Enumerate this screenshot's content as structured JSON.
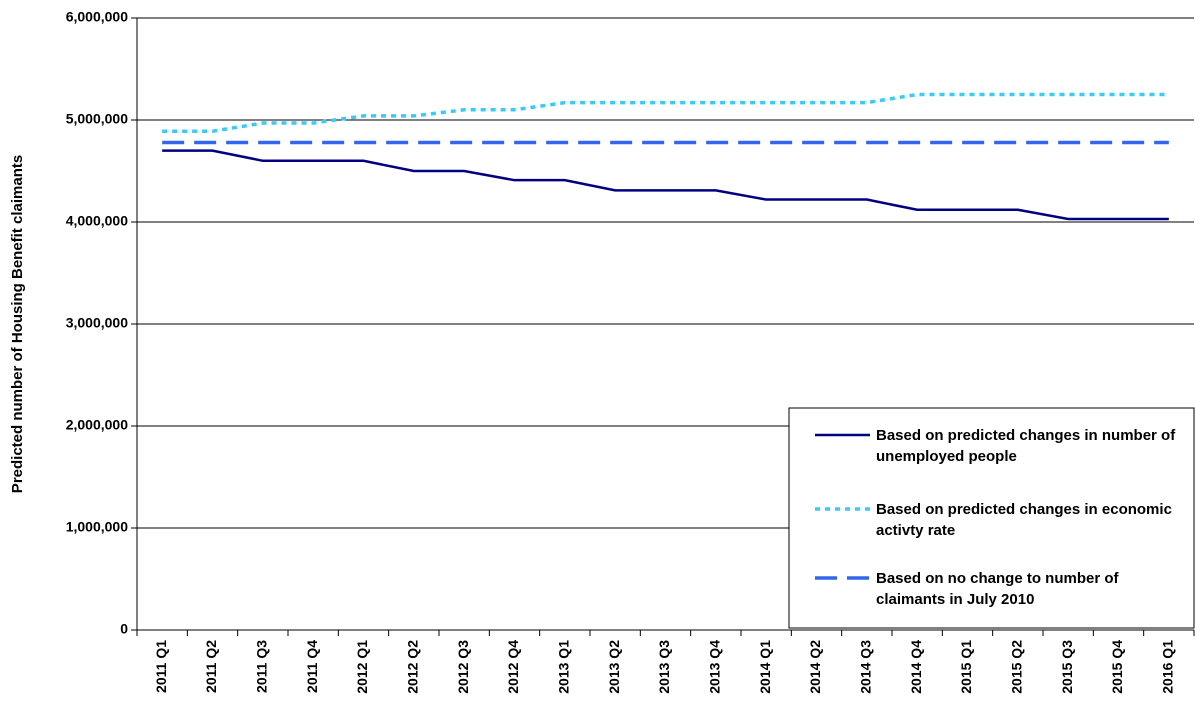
{
  "chart_data": {
    "type": "line",
    "y_label": "Predicted number of Housing Benefit claimants",
    "categories": [
      "2011 Q1",
      "2011 Q2",
      "2011 Q3",
      "2011 Q4",
      "2012 Q1",
      "2012 Q2",
      "2012 Q3",
      "2012 Q4",
      "2013 Q1",
      "2013 Q2",
      "2013 Q3",
      "2013 Q4",
      "2014 Q1",
      "2014 Q2",
      "2014 Q3",
      "2014 Q4",
      "2015 Q1",
      "2015 Q2",
      "2015 Q3",
      "2015 Q4",
      "2016 Q1"
    ],
    "series": [
      {
        "name": "Based on predicted changes in number of unemployed people",
        "color": "#000080",
        "dash": "solid",
        "values": [
          4700000,
          4700000,
          4600000,
          4600000,
          4600000,
          4500000,
          4500000,
          4410000,
          4410000,
          4310000,
          4310000,
          4310000,
          4220000,
          4220000,
          4220000,
          4120000,
          4120000,
          4120000,
          4030000,
          4030000,
          4030000
        ]
      },
      {
        "name": "Based on predicted changes in economic activty rate",
        "color": "#33ccff",
        "dash": "dotted",
        "values": [
          4890000,
          4890000,
          4970000,
          4970000,
          5040000,
          5040000,
          5100000,
          5100000,
          5170000,
          5170000,
          5170000,
          5170000,
          5170000,
          5170000,
          5170000,
          5250000,
          5250000,
          5250000,
          5250000,
          5250000,
          5250000
        ]
      },
      {
        "name": "Based on no change to number of claimants in July 2010",
        "color": "#3366ee",
        "dash": "dashed",
        "values": [
          4780000,
          4780000,
          4780000,
          4780000,
          4780000,
          4780000,
          4780000,
          4780000,
          4780000,
          4780000,
          4780000,
          4780000,
          4780000,
          4780000,
          4780000,
          4780000,
          4780000,
          4780000,
          4780000,
          4780000,
          4780000
        ]
      }
    ],
    "ylim": [
      0,
      6000000
    ],
    "yticks": [
      0,
      {
        "value": 1000000,
        "label": "1,000,000"
      },
      {
        "value": 2000000,
        "label": "2,000,000"
      },
      {
        "value": 3000000,
        "label": "3,000,000"
      },
      {
        "value": 4000000,
        "label": "4,000,000"
      },
      {
        "value": 5000000,
        "label": "5,000,000"
      },
      {
        "value": 6000000,
        "label": "6,000,000"
      }
    ],
    "grid": true
  }
}
